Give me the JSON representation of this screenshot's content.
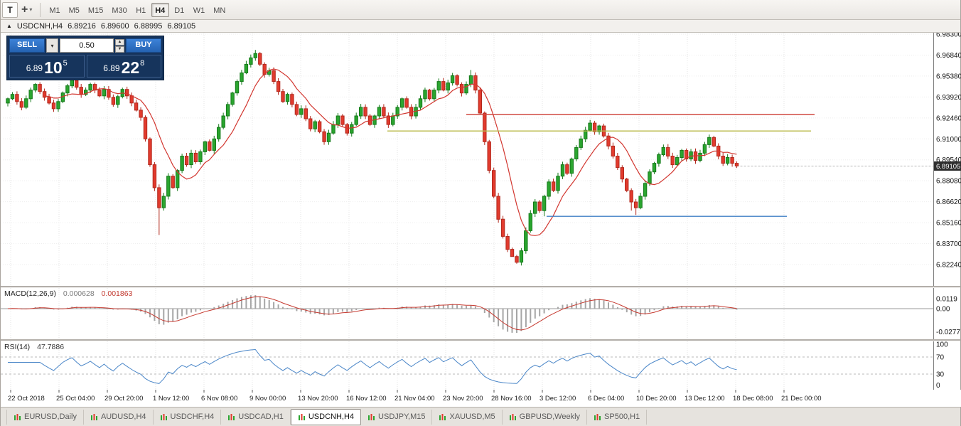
{
  "toolbar": {
    "icon_t": "T",
    "crosshair": "+",
    "chevron": "▾",
    "timeframes": [
      "M1",
      "M5",
      "M15",
      "M30",
      "H1",
      "H4",
      "D1",
      "W1",
      "MN"
    ],
    "active_timeframe": "H4"
  },
  "chart_header": {
    "collapse_icon": "▲",
    "title": "USDCNH,H4",
    "open": "6.89216",
    "high": "6.89600",
    "low": "6.88995",
    "close": "6.89105"
  },
  "trade_panel": {
    "sell_label": "SELL",
    "buy_label": "BUY",
    "volume": "0.50",
    "sell_price": {
      "small": "6.89",
      "big": "10",
      "sup": "5"
    },
    "buy_price": {
      "small": "6.89",
      "big": "22",
      "sup": "8"
    },
    "colors": {
      "panel_bg": "#16345c",
      "button": "#2e72c8"
    }
  },
  "current_price": {
    "text": "6.89105",
    "value": 6.89105
  },
  "chart_data": {
    "main": {
      "type": "candlestick",
      "symbol": "USDCNH",
      "timeframe": "H4",
      "first_open": 6.935,
      "closes": [
        6.938,
        6.941,
        6.936,
        6.932,
        6.938,
        6.944,
        6.948,
        6.943,
        6.939,
        6.935,
        6.931,
        6.936,
        6.942,
        6.947,
        6.951,
        6.946,
        6.941,
        6.944,
        6.948,
        6.944,
        6.94,
        6.9445,
        6.939,
        6.934,
        6.9395,
        6.9445,
        6.94,
        6.935,
        6.93,
        6.925,
        6.91,
        6.892,
        6.876,
        6.862,
        6.87,
        6.884,
        6.876,
        6.888,
        6.898,
        6.892,
        6.9,
        6.894,
        6.901,
        6.908,
        6.902,
        6.91,
        6.918,
        6.926,
        6.934,
        6.942,
        6.95,
        6.956,
        6.962,
        6.9665,
        6.9695,
        6.962,
        6.955,
        6.9575,
        6.95,
        6.943,
        6.936,
        6.941,
        6.934,
        6.927,
        6.931,
        6.924,
        6.917,
        6.922,
        6.915,
        6.908,
        6.914,
        6.92,
        6.926,
        6.92,
        6.914,
        6.92,
        6.926,
        6.932,
        6.926,
        6.92,
        6.926,
        6.932,
        6.926,
        6.92,
        6.926,
        6.932,
        6.938,
        6.932,
        6.926,
        6.932,
        6.938,
        6.944,
        6.938,
        6.944,
        6.95,
        6.944,
        6.949,
        6.954,
        6.948,
        6.942,
        6.948,
        6.954,
        6.944,
        6.928,
        6.908,
        6.888,
        6.87,
        6.854,
        6.842,
        6.833,
        6.828,
        6.824,
        6.832,
        6.846,
        6.858,
        6.866,
        6.86,
        6.87,
        6.88,
        6.874,
        6.884,
        6.892,
        6.886,
        6.896,
        6.904,
        6.91,
        6.916,
        6.921,
        6.915,
        6.919,
        6.912,
        6.905,
        6.898,
        6.89,
        6.882,
        6.874,
        6.866,
        6.862,
        6.87,
        6.879,
        6.887,
        6.893,
        6.899,
        6.904,
        6.898,
        6.892,
        6.897,
        6.902,
        6.896,
        6.901,
        6.895,
        6.9,
        6.906,
        6.911,
        6.905,
        6.898,
        6.893,
        6.897,
        6.893,
        6.8911
      ],
      "wick_base": 0.0008,
      "wick_amp": 0.0016,
      "wick_overrides": {
        "33": {
          "low": 6.843
        },
        "54": {
          "high": 6.972
        },
        "97": {
          "high": 6.956
        },
        "101": {
          "high": 6.958
        },
        "110": {
          "low": 6.829
        },
        "111": {
          "low": 6.823
        },
        "117": {
          "low": 6.856
        },
        "136": {
          "low": 6.86
        },
        "137": {
          "low": 6.857
        },
        "153": {
          "high": 6.913
        }
      },
      "ma_period": 9,
      "price_axis": {
        "top_value": 6.983,
        "bottom_value": 6.8224,
        "labels": [
          {
            "text": "6.98300",
            "value": 6.983
          },
          {
            "text": "6.96840",
            "value": 6.9684
          },
          {
            "text": "6.95380",
            "value": 6.9538
          },
          {
            "text": "6.93920",
            "value": 6.9392
          },
          {
            "text": "6.92460",
            "value": 6.9246
          },
          {
            "text": "6.91000",
            "value": 6.91
          },
          {
            "text": "6.89540",
            "value": 6.8954
          },
          {
            "text": "6.88080",
            "value": 6.8808
          },
          {
            "text": "6.86620",
            "value": 6.8662
          },
          {
            "text": "6.85160",
            "value": 6.8516
          },
          {
            "text": "6.83700",
            "value": 6.837
          },
          {
            "text": "6.82240",
            "value": 6.8224
          }
        ]
      },
      "hlines": [
        {
          "value": 6.927,
          "color": "#cf4840",
          "from": 0.499,
          "to": 0.873,
          "name": "resistance-line-red"
        },
        {
          "value": 6.9155,
          "color": "#b9b94a",
          "from": 0.415,
          "to": 0.869,
          "name": "resistance-line-yellow"
        },
        {
          "value": 6.856,
          "color": "#3f80c6",
          "from": 0.585,
          "to": 0.843,
          "name": "support-line-blue"
        }
      ],
      "colors": {
        "up_fill": "#2aa52f",
        "up_stroke": "#157a1a",
        "down_fill": "#e23b2e",
        "down_stroke": "#b2281d",
        "ma": "#d23730"
      }
    },
    "macd": {
      "type": "macd",
      "label": "MACD(12,26,9)",
      "value_main": "0.000628",
      "value_signal": "0.001863",
      "axis_labels": [
        {
          "text": "0.0119",
          "value": 0.0119
        },
        {
          "text": "0.00",
          "value": 0
        },
        {
          "text": "-0.0277",
          "value": -0.0277
        }
      ],
      "range_top": 0.023,
      "range_bottom": -0.035,
      "calc_fast": 6,
      "calc_slow": 13,
      "calc_signal": 5,
      "normalize_min": -0.029,
      "colors": {
        "hist": "#a6a6a6",
        "signal": "#c63a30",
        "zero": "#9a9a9a"
      }
    },
    "rsi": {
      "type": "rsi",
      "label": "RSI(14)",
      "value": "47.7886",
      "axis_labels": [
        {
          "text": "100",
          "value": 100
        },
        {
          "text": "70",
          "value": 70
        },
        {
          "text": "30",
          "value": 30
        },
        {
          "text": "0",
          "value": 0
        }
      ],
      "levels": [
        70,
        30
      ],
      "calc_period": 7,
      "colors": {
        "line": "#4a86c8",
        "level": "#b9b9b9"
      }
    }
  },
  "time_axis": {
    "labels": [
      "22 Oct 2018",
      "25 Oct 04:00",
      "29 Oct 20:00",
      "1 Nov 12:00",
      "6 Nov 08:00",
      "9 Nov 00:00",
      "13 Nov 20:00",
      "16 Nov 12:00",
      "21 Nov 04:00",
      "23 Nov 20:00",
      "28 Nov 16:00",
      "3 Dec 12:00",
      "6 Dec 04:00",
      "10 Dec 20:00",
      "13 Dec 12:00",
      "18 Dec 08:00",
      "21 Dec 00:00"
    ]
  },
  "tabs": {
    "items": [
      "EURUSD,Daily",
      "AUDUSD,H4",
      "USDCHF,H4",
      "USDCAD,H1",
      "USDCNH,H4",
      "USDJPY,M15",
      "XAUUSD,M5",
      "GBPUSD,Weekly",
      "SP500,H1"
    ],
    "active": "USDCNH,H4"
  }
}
